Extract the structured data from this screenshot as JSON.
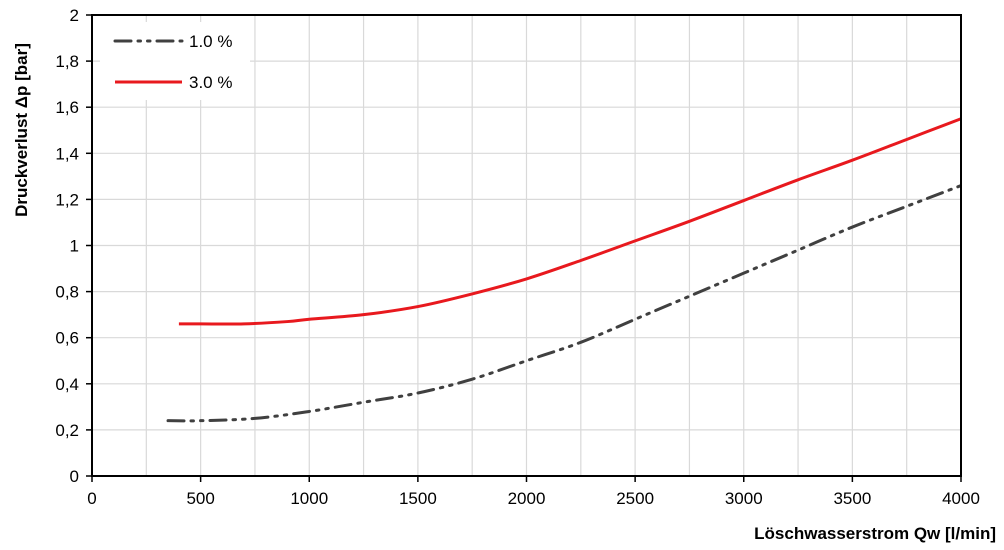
{
  "chart_data": {
    "type": "line",
    "xlabel": "Löschwasserstrom Qw [l/min]",
    "ylabel": "Druckverlust Δp [bar]",
    "xlim": [
      0,
      4000
    ],
    "ylim": [
      0,
      2
    ],
    "x_ticks": [
      "0",
      "500",
      "1000",
      "1500",
      "2000",
      "2500",
      "3000",
      "3500",
      "4000"
    ],
    "y_ticks": [
      "0",
      "0,2",
      "0,4",
      "0,6",
      "0,8",
      "1",
      "1,2",
      "1,4",
      "1,6",
      "1,8",
      "2"
    ],
    "grid": true,
    "legend_position": "top-left",
    "series": [
      {
        "name": "1.0 %",
        "color": "#404040",
        "style": "dash-dot-dot",
        "x": [
          350,
          500,
          750,
          1000,
          1250,
          1500,
          1750,
          2000,
          2250,
          2500,
          2750,
          3000,
          3250,
          3500,
          3750,
          4000
        ],
        "y": [
          0.24,
          0.24,
          0.25,
          0.28,
          0.32,
          0.36,
          0.42,
          0.5,
          0.58,
          0.68,
          0.78,
          0.88,
          0.98,
          1.08,
          1.17,
          1.26
        ]
      },
      {
        "name": "3.0 %",
        "color": "#e8191e",
        "style": "solid",
        "x": [
          400,
          500,
          700,
          900,
          1000,
          1250,
          1500,
          1750,
          2000,
          2250,
          2500,
          2750,
          3000,
          3250,
          3500,
          3750,
          4000
        ],
        "y": [
          0.66,
          0.66,
          0.66,
          0.67,
          0.68,
          0.7,
          0.735,
          0.79,
          0.855,
          0.935,
          1.02,
          1.105,
          1.195,
          1.285,
          1.37,
          1.46,
          1.55
        ]
      }
    ]
  }
}
